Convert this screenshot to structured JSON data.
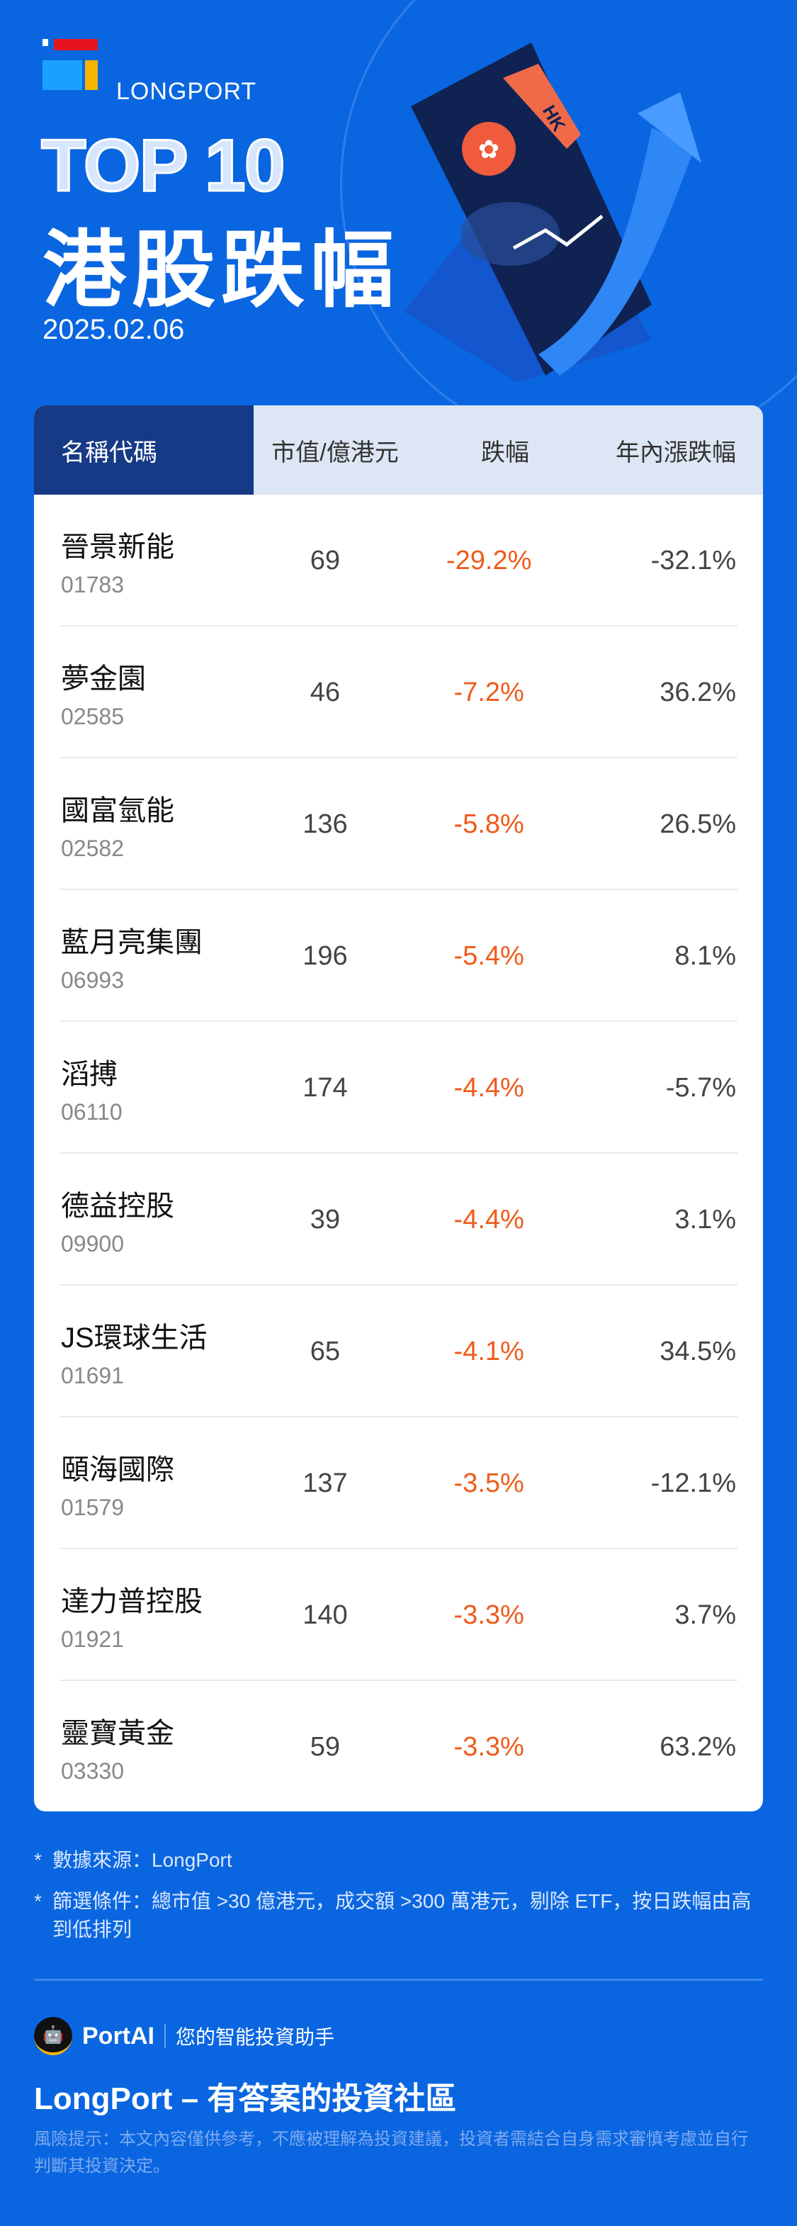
{
  "brand": {
    "name": "LONGPORT"
  },
  "hero": {
    "top_label": "TOP 10",
    "title": "港股跌幅",
    "date": "2025.02.06",
    "illustration_tag": "HK"
  },
  "table": {
    "headers": [
      "名稱代碼",
      "市值/億港元",
      "跌幅",
      "年內漲跌幅"
    ],
    "rows": [
      {
        "name": "晉景新能",
        "code": "01783",
        "cap": "69",
        "drop": "-29.2%",
        "ytd": "-32.1%"
      },
      {
        "name": "夢金園",
        "code": "02585",
        "cap": "46",
        "drop": "-7.2%",
        "ytd": "36.2%"
      },
      {
        "name": "國富氫能",
        "code": "02582",
        "cap": "136",
        "drop": "-5.8%",
        "ytd": "26.5%"
      },
      {
        "name": "藍月亮集團",
        "code": "06993",
        "cap": "196",
        "drop": "-5.4%",
        "ytd": "8.1%"
      },
      {
        "name": "滔搏",
        "code": "06110",
        "cap": "174",
        "drop": "-4.4%",
        "ytd": "-5.7%"
      },
      {
        "name": "德益控股",
        "code": "09900",
        "cap": "39",
        "drop": "-4.4%",
        "ytd": "3.1%"
      },
      {
        "name": "JS環球生活",
        "code": "01691",
        "cap": "65",
        "drop": "-4.1%",
        "ytd": "34.5%"
      },
      {
        "name": "頤海國際",
        "code": "01579",
        "cap": "137",
        "drop": "-3.5%",
        "ytd": "-12.1%"
      },
      {
        "name": "達力普控股",
        "code": "01921",
        "cap": "140",
        "drop": "-3.3%",
        "ytd": "3.7%"
      },
      {
        "name": "靈寶黃金",
        "code": "03330",
        "cap": "59",
        "drop": "-3.3%",
        "ytd": "63.2%"
      }
    ]
  },
  "notes": [
    {
      "star": "*",
      "text": "數據來源：LongPort"
    },
    {
      "star": "*",
      "text": "篩選條件：總市值 >30 億港元，成交額 >300 萬港元，剔除 ETF，按日跌幅由高到低排列"
    }
  ],
  "footer": {
    "portai": "PortAI",
    "portai_tagline": "您的智能投資助手",
    "slogan": "LongPort – 有答案的投資社區",
    "disclaimer": "風險提示：本文內容僅供參考，不應被理解為投資建議，投資者需結合自身需求審慎考慮並自行判斷其投資決定。"
  },
  "colors": {
    "background": "#0a66e0",
    "header_dark": "#163a86",
    "drop": "#ef5b1a"
  }
}
